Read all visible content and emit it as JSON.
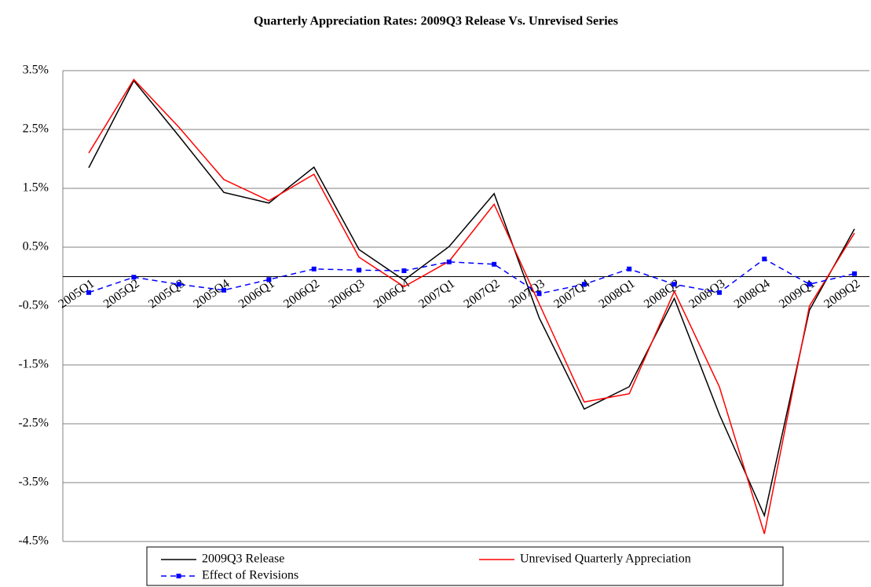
{
  "chart_data": {
    "type": "line",
    "title": "Quarterly Appreciation Rates: 2009Q3 Release Vs. Unrevised Series",
    "categories": [
      "2005Q1",
      "2005Q2",
      "2005Q3",
      "2005Q4",
      "2006Q1",
      "2006Q2",
      "2006Q3",
      "2006Q4",
      "2007Q1",
      "2007Q2",
      "2007Q3",
      "2007Q4",
      "2008Q1",
      "2008Q2",
      "2008Q3",
      "2008Q4",
      "2009Q1",
      "2009Q2"
    ],
    "series": [
      {
        "name": "2009Q3 Release",
        "color": "#000000",
        "dashed": false,
        "marker": false,
        "values": [
          1.85,
          3.33,
          2.39,
          1.43,
          1.25,
          1.86,
          0.46,
          -0.06,
          0.51,
          1.41,
          -0.7,
          -2.25,
          -1.87,
          -0.37,
          -2.34,
          -4.06,
          -0.57,
          0.81
        ]
      },
      {
        "name": "Unrevised Quarterly Appreciation",
        "color": "#ff0000",
        "dashed": false,
        "marker": false,
        "values": [
          2.1,
          3.35,
          2.54,
          1.65,
          1.29,
          1.74,
          0.33,
          -0.17,
          0.26,
          1.23,
          -0.46,
          -2.13,
          -1.99,
          -0.25,
          -1.87,
          -4.37,
          -0.5,
          0.74
        ]
      },
      {
        "name": "Effect of Revisions",
        "color": "#0000ff",
        "dashed": true,
        "marker": true,
        "values": [
          -0.27,
          -0.01,
          -0.13,
          -0.23,
          -0.05,
          0.13,
          0.11,
          0.1,
          0.25,
          0.21,
          -0.29,
          -0.13,
          0.13,
          -0.13,
          -0.27,
          0.3,
          -0.13,
          0.05
        ]
      }
    ],
    "ylim": [
      -4.5,
      3.5
    ],
    "yticks": [
      {
        "value": -4.5,
        "label": "-4.5%"
      },
      {
        "value": -3.5,
        "label": "-3.5%"
      },
      {
        "value": -2.5,
        "label": "-2.5%"
      },
      {
        "value": -1.5,
        "label": "-1.5%"
      },
      {
        "value": -0.5,
        "label": "-0.5%"
      },
      {
        "value": 0.5,
        "label": "0.5%"
      },
      {
        "value": 1.5,
        "label": "1.5%"
      },
      {
        "value": 2.5,
        "label": "2.5%"
      },
      {
        "value": 3.5,
        "label": "3.5%"
      }
    ],
    "grid": true
  }
}
